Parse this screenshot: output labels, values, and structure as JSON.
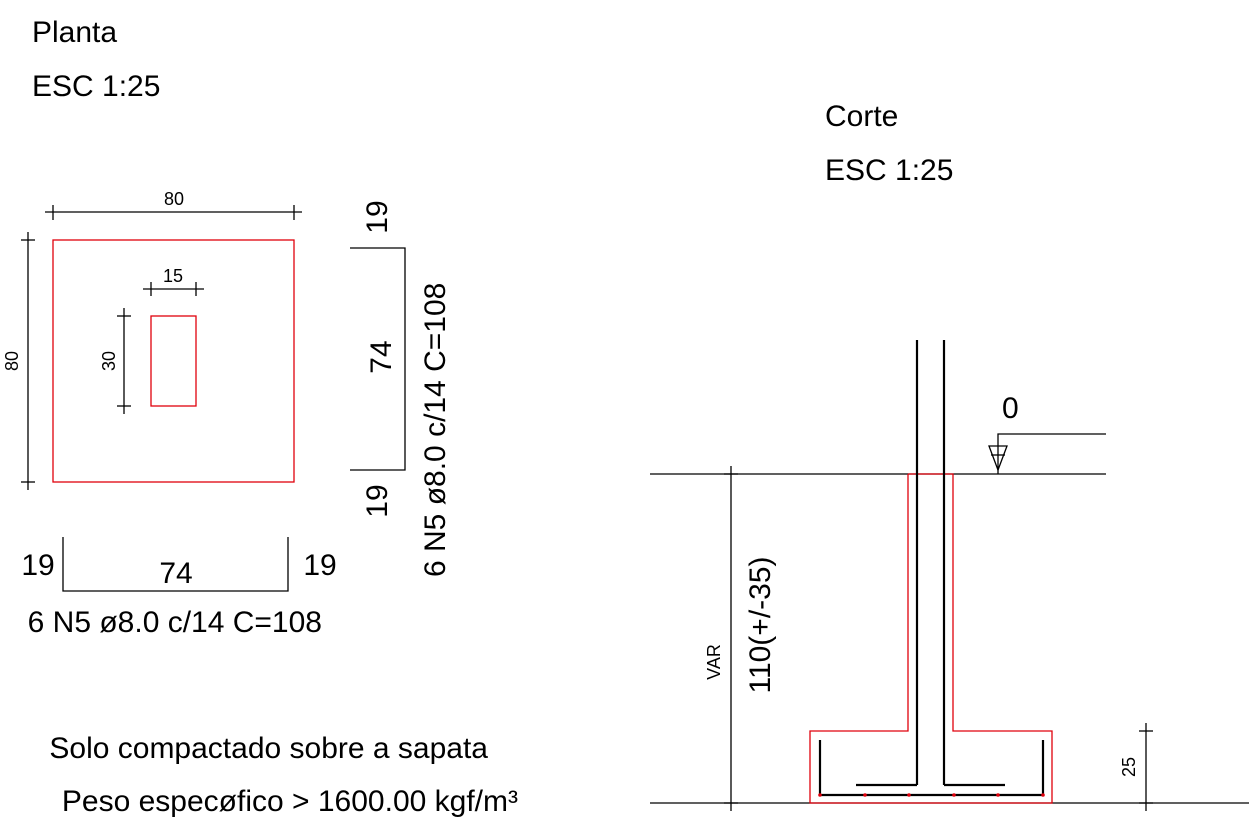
{
  "plan": {
    "title": "Planta",
    "scale": "ESC 1:25",
    "dim_width": "80",
    "dim_height": "80",
    "dim_col_width": "15",
    "dim_col_height": "30"
  },
  "bar_horizontal": {
    "left": "19",
    "middle": "74",
    "right": "19",
    "spec": "6 N5 ø8.0 c/14 C=108"
  },
  "bar_vertical": {
    "top": "19",
    "middle": "74",
    "bottom": "19",
    "spec": "6 N5 ø8.0 c/14 C=108"
  },
  "notes": {
    "line1": "Solo compactado sobre a sapata",
    "line2": "Peso especøfico > 1600.00 kgf/m³"
  },
  "section": {
    "title": "Corte",
    "scale": "ESC 1:25",
    "level": "0",
    "var_label": "VAR",
    "depth": "110(+/-35)",
    "footing_height": "25"
  }
}
